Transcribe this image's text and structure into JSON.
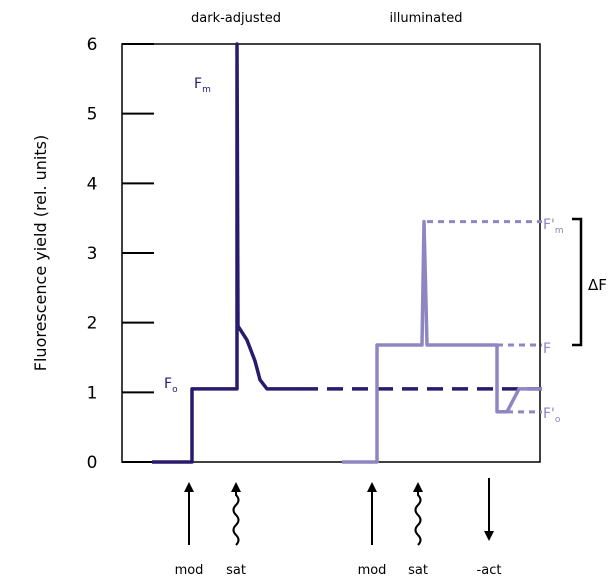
{
  "chart_data": {
    "type": "line",
    "title": "",
    "ylabel": "Fluorescence yield (rel. units)",
    "xlabel": "",
    "ylim": [
      0,
      6
    ],
    "yticks": [
      0,
      1,
      2,
      3,
      4,
      5,
      6
    ],
    "section_labels": [
      "dark-adjusted",
      "illuminated"
    ],
    "series": [
      {
        "name": "dark-adjusted",
        "color": "#2a1a6e",
        "points": [
          [
            0.3,
            0
          ],
          [
            0.7,
            0
          ],
          [
            0.7,
            1.05
          ],
          [
            1.15,
            1.05
          ],
          [
            1.15,
            6.0
          ],
          [
            1.16,
            1.95
          ],
          [
            1.25,
            1.75
          ],
          [
            1.33,
            1.45
          ],
          [
            1.38,
            1.18
          ],
          [
            1.45,
            1.05
          ],
          [
            1.8,
            1.05
          ]
        ],
        "dashed_extension": [
          [
            1.8,
            1.05
          ],
          [
            4.2,
            1.05
          ]
        ]
      },
      {
        "name": "illuminated",
        "color": "#8e86c2",
        "points": [
          [
            2.2,
            0
          ],
          [
            2.55,
            0
          ],
          [
            2.55,
            1.68
          ],
          [
            3.0,
            1.68
          ],
          [
            3.02,
            3.45
          ],
          [
            3.05,
            1.68
          ],
          [
            3.75,
            1.68
          ],
          [
            3.75,
            0.72
          ],
          [
            3.85,
            0.72
          ],
          [
            3.97,
            1.05
          ],
          [
            4.2,
            1.05
          ]
        ],
        "dashed_refs": [
          {
            "y": 3.45,
            "x0": 3.05,
            "x1": 4.2
          },
          {
            "y": 1.68,
            "x0": 3.75,
            "x1": 4.2
          },
          {
            "y": 0.72,
            "x0": 3.85,
            "x1": 4.2
          }
        ]
      }
    ],
    "point_labels": [
      {
        "text": "F",
        "sub": "m",
        "color": "#2a1a6e"
      },
      {
        "text": "F",
        "sub": "o",
        "color": "#2a1a6e"
      },
      {
        "text": "F'",
        "sub": "m",
        "color": "#8e86c2"
      },
      {
        "text": "F",
        "sub": "",
        "color": "#8e86c2"
      },
      {
        "text": "F'",
        "sub": "o",
        "color": "#8e86c2"
      }
    ],
    "delta_label": "ΔF",
    "arrows": [
      {
        "label": "mod",
        "kind": "straight-up"
      },
      {
        "label": "sat",
        "kind": "wavy-up"
      },
      {
        "label": "mod",
        "kind": "straight-up"
      },
      {
        "label": "sat",
        "kind": "wavy-up"
      },
      {
        "label": "-act",
        "kind": "straight-down"
      }
    ]
  }
}
